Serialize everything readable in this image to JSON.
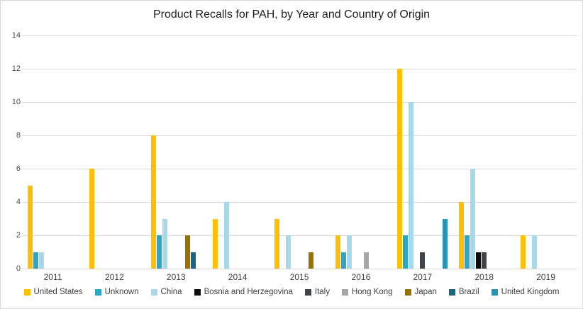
{
  "title": "Product Recalls for PAH, by Year and Country of Origin",
  "chart_data": {
    "type": "bar",
    "title": "Product Recalls for PAH, by Year and Country of Origin",
    "categories": [
      "2011",
      "2012",
      "2013",
      "2014",
      "2015",
      "2016",
      "2017",
      "2018",
      "2019"
    ],
    "series": [
      {
        "name": "United States",
        "color": "#FFC000",
        "values": [
          5,
          6,
          8,
          3,
          3,
          2,
          12,
          4,
          2
        ]
      },
      {
        "name": "Unknown",
        "color": "#2BA7C6",
        "values": [
          1,
          0,
          2,
          0,
          0,
          1,
          2,
          2,
          0
        ]
      },
      {
        "name": "China",
        "color": "#A5D8E8",
        "values": [
          1,
          0,
          3,
          4,
          2,
          2,
          10,
          6,
          2
        ]
      },
      {
        "name": "Bosnia and Herzegovina",
        "color": "#0D0D0D",
        "values": [
          0,
          0,
          0,
          0,
          0,
          0,
          0,
          1,
          0
        ]
      },
      {
        "name": "Italy",
        "color": "#404448",
        "values": [
          0,
          0,
          0,
          0,
          0,
          0,
          1,
          1,
          0
        ]
      },
      {
        "name": "Hong Kong",
        "color": "#A6A6A6",
        "values": [
          0,
          0,
          0,
          0,
          0,
          1,
          0,
          0,
          0
        ]
      },
      {
        "name": "Japan",
        "color": "#997300",
        "values": [
          0,
          0,
          2,
          0,
          1,
          0,
          0,
          0,
          0
        ]
      },
      {
        "name": "Brazil",
        "color": "#17687E",
        "values": [
          0,
          0,
          1,
          0,
          0,
          0,
          0,
          0,
          0
        ]
      },
      {
        "name": "United Kingdom",
        "color": "#2196B6",
        "values": [
          0,
          0,
          0,
          0,
          0,
          0,
          3,
          0,
          0
        ]
      }
    ],
    "xlabel": "",
    "ylabel": "",
    "ylim": [
      0,
      14
    ],
    "ytick_step": 2,
    "y_ticks": [
      "0",
      "2",
      "4",
      "6",
      "8",
      "10",
      "12",
      "14"
    ],
    "grid": true,
    "gridline_color": "#d9d9d9",
    "legend_position": "bottom"
  }
}
